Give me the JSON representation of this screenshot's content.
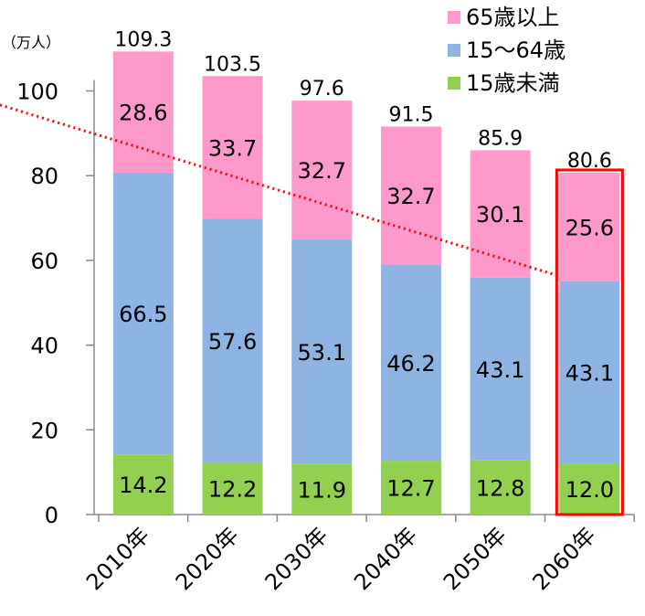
{
  "chart_data": {
    "type": "bar",
    "stacked": true,
    "unit_label": "（万人）",
    "categories": [
      "2010年",
      "2020年",
      "2030年",
      "2040年",
      "2050年",
      "2060年"
    ],
    "series": [
      {
        "name": "15歳未満",
        "color": "#92d050",
        "values": [
          14.2,
          12.2,
          11.9,
          12.7,
          12.8,
          12.0
        ],
        "labels": [
          "14.2",
          "12.2",
          "11.9",
          "12.7",
          "12.8",
          "12.0"
        ]
      },
      {
        "name": "15～64歳",
        "color": "#8eb4e3",
        "values": [
          66.5,
          57.6,
          53.1,
          46.2,
          43.1,
          43.1
        ],
        "labels": [
          "66.5",
          "57.6",
          "53.1",
          "46.2",
          "43.1",
          "43.1"
        ]
      },
      {
        "name": "65歳以上",
        "color": "#ff99cc",
        "values": [
          28.6,
          33.7,
          32.7,
          32.7,
          30.1,
          25.6
        ],
        "labels": [
          "28.6",
          "33.7",
          "32.7",
          "32.7",
          "30.1",
          "25.6"
        ]
      }
    ],
    "totals": [
      "109.3",
      "103.5",
      "97.6",
      "91.5",
      "85.9",
      "80.6"
    ],
    "y_ticks": [
      "0",
      "20",
      "40",
      "60",
      "80",
      "100"
    ],
    "ylim": [
      0,
      120
    ],
    "legend_position": "top-right",
    "legend_order": [
      2,
      1,
      0
    ],
    "highlight_category_index": 5,
    "highlight_color": "#ff0000",
    "trend_line": {
      "color": "#ff0000",
      "style": "dotted",
      "from_y": 101,
      "to_y": 52
    }
  }
}
